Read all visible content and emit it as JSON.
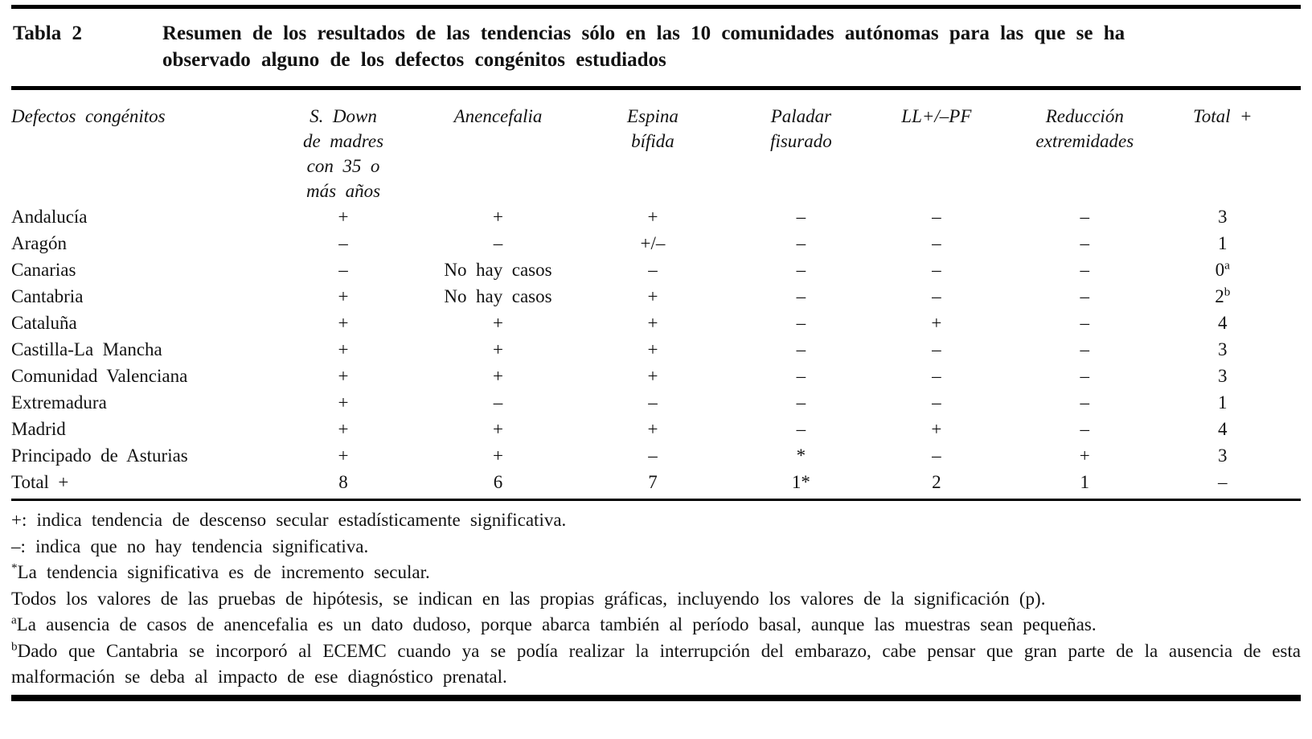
{
  "caption": {
    "label": "Tabla 2",
    "title": "Resumen de los resultados de las tendencias sólo en las 10 comunidades autónomas para las que se ha observado alguno de los defectos congénitos estudiados"
  },
  "table": {
    "row_header": "Defectos congénitos",
    "columns": [
      {
        "lines": [
          "S. Down",
          "de madres",
          "con 35 o",
          "más años"
        ]
      },
      {
        "lines": [
          "Anencefalia"
        ]
      },
      {
        "lines": [
          "Espina",
          "bífida"
        ]
      },
      {
        "lines": [
          "Paladar",
          "fisurado"
        ]
      },
      {
        "lines": [
          "LL+/–PF"
        ]
      },
      {
        "lines": [
          "Reducción",
          "extremidades"
        ]
      },
      {
        "lines": [
          "Total +"
        ]
      }
    ],
    "rows": [
      {
        "label": "Andalucía",
        "cells": [
          "+",
          "+",
          "+",
          "–",
          "–",
          "–",
          "3"
        ]
      },
      {
        "label": "Aragón",
        "cells": [
          "–",
          "–",
          "+/–",
          "–",
          "–",
          "–",
          "1"
        ]
      },
      {
        "label": "Canarias",
        "cells": [
          "–",
          "No hay casos",
          "–",
          "–",
          "–",
          "–",
          "0^a"
        ]
      },
      {
        "label": "Cantabria",
        "cells": [
          "+",
          "No hay casos",
          "+",
          "–",
          "–",
          "–",
          "2^b"
        ]
      },
      {
        "label": "Cataluña",
        "cells": [
          "+",
          "+",
          "+",
          "–",
          "+",
          "–",
          "4"
        ]
      },
      {
        "label": "Castilla-La Mancha",
        "cells": [
          "+",
          "+",
          "+",
          "–",
          "–",
          "–",
          "3"
        ]
      },
      {
        "label": "Comunidad Valenciana",
        "cells": [
          "+",
          "+",
          "+",
          "–",
          "–",
          "–",
          "3"
        ]
      },
      {
        "label": "Extremadura",
        "cells": [
          "+",
          "–",
          "–",
          "–",
          "–",
          "–",
          "1"
        ]
      },
      {
        "label": "Madrid",
        "cells": [
          "+",
          "+",
          "+",
          "–",
          "+",
          "–",
          "4"
        ]
      },
      {
        "label": "Principado de Asturias",
        "cells": [
          "+",
          "+",
          "–",
          "*",
          "–",
          "+",
          "3"
        ]
      },
      {
        "label": "Total +",
        "cells": [
          "8",
          "6",
          "7",
          "1*",
          "2",
          "1",
          "–"
        ]
      }
    ]
  },
  "footnotes": [
    {
      "sup": "",
      "text": "+: indica tendencia de descenso secular estadísticamente significativa."
    },
    {
      "sup": "",
      "text": "–: indica que no hay tendencia significativa."
    },
    {
      "sup": "*",
      "text": "La tendencia significativa es de incremento secular."
    },
    {
      "sup": "",
      "text": "Todos los valores de las pruebas de hipótesis, se indican en las propias gráficas, incluyendo los valores de la significación (p)."
    },
    {
      "sup": "a",
      "text": "La ausencia de casos de anencefalia es un dato dudoso, porque abarca también al período basal, aunque las muestras sean pequeñas."
    },
    {
      "sup": "b",
      "text": "Dado que Cantabria se incorporó al ECEMC cuando ya se podía realizar la interrupción del embarazo, cabe pensar que gran parte de la ausencia de esta malformación se deba al impacto de ese diagnóstico prenatal."
    }
  ],
  "colors": {
    "background": "#ffffff",
    "text": "#121212",
    "rule": "#000000"
  }
}
